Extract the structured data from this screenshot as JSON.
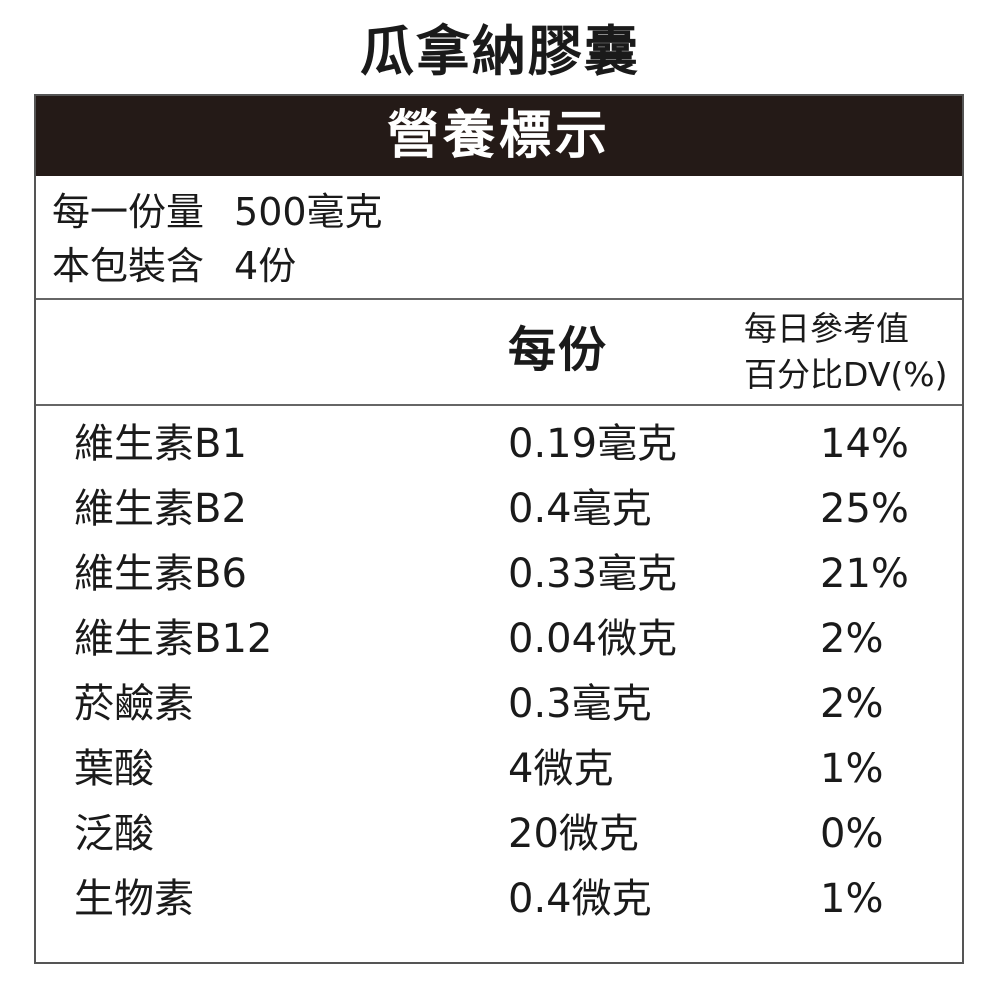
{
  "product_title": "瓜拿納膠囊",
  "panel_title": "營養標示",
  "serving": {
    "size_label": "每一份量",
    "size_value": "500毫克",
    "count_label": "本包裝含",
    "count_value": "4份"
  },
  "columns": {
    "per_serving": "每份",
    "dv_line1": "每日參考值",
    "dv_line2": "百分比DV(%)"
  },
  "nutrients": [
    {
      "name": "維生素B1",
      "amount": "0.19毫克",
      "dv": "14%"
    },
    {
      "name": "維生素B2",
      "amount": "0.4毫克",
      "dv": "25%"
    },
    {
      "name": "維生素B6",
      "amount": "0.33毫克",
      "dv": "21%"
    },
    {
      "name": "維生素B12",
      "amount": "0.04微克",
      "dv": "2%"
    },
    {
      "name": "菸鹼素",
      "amount": "0.3毫克",
      "dv": "2%"
    },
    {
      "name": "葉酸",
      "amount": "4微克",
      "dv": "1%"
    },
    {
      "name": "泛酸",
      "amount": "20微克",
      "dv": "0%"
    },
    {
      "name": "生物素",
      "amount": "0.4微克",
      "dv": "1%"
    }
  ]
}
